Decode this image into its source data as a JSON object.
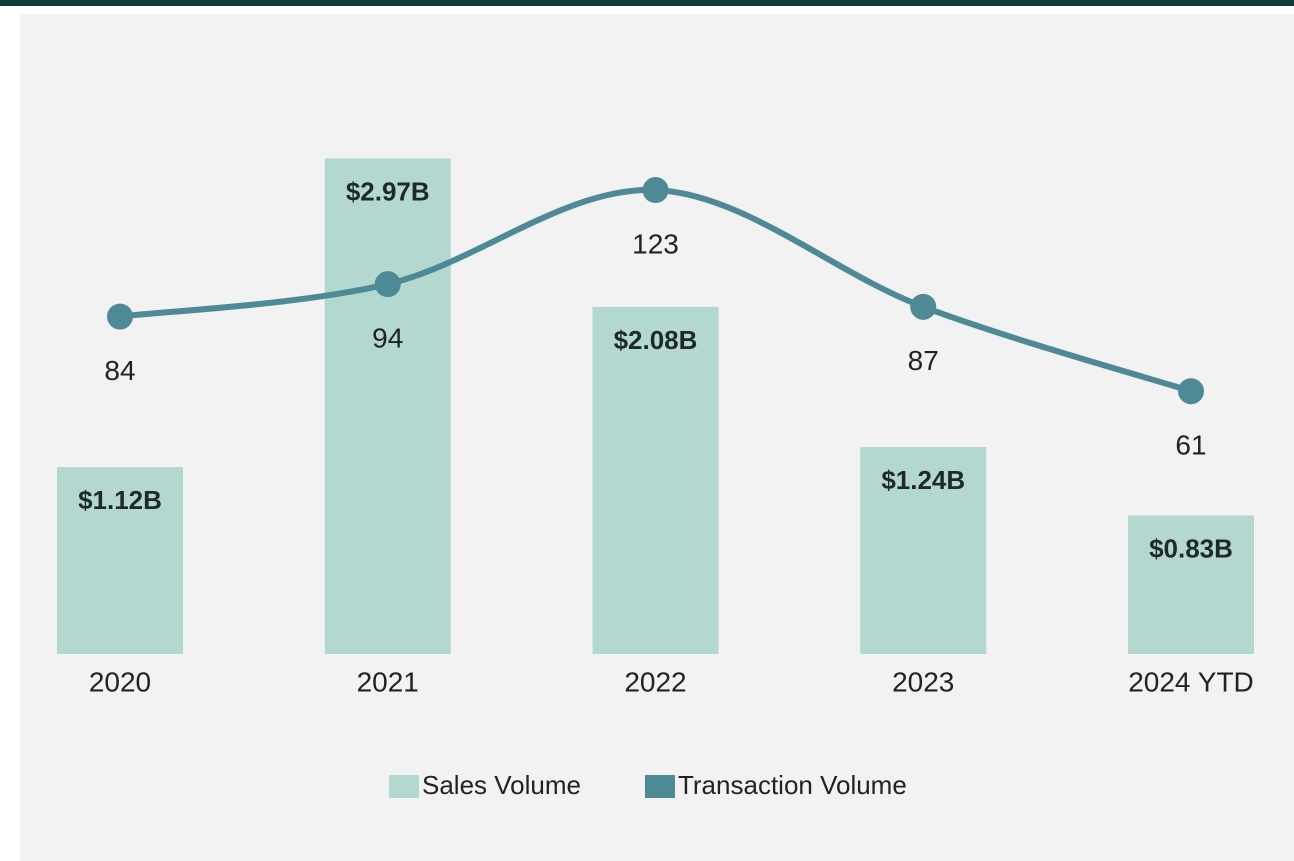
{
  "chart_data": {
    "type": "bar-line",
    "categories": [
      "2020",
      "2021",
      "2022",
      "2023",
      "2024 YTD"
    ],
    "series": [
      {
        "name": "Sales Volume",
        "type": "bar",
        "color": "#b3d8cf",
        "values": [
          1.12,
          2.97,
          2.08,
          1.24,
          0.83
        ],
        "value_labels": [
          "$1.12B",
          "$2.97B",
          "$2.08B",
          "$1.24B",
          "$0.83B"
        ]
      },
      {
        "name": "Transaction Volume",
        "type": "line",
        "axis": "y2",
        "color": "#4e8a96",
        "values": [
          84,
          94,
          123,
          87,
          61
        ]
      }
    ],
    "ylim": [
      0,
      3.5
    ],
    "y2lim": [
      -20,
      160
    ],
    "legend": "bottom"
  }
}
